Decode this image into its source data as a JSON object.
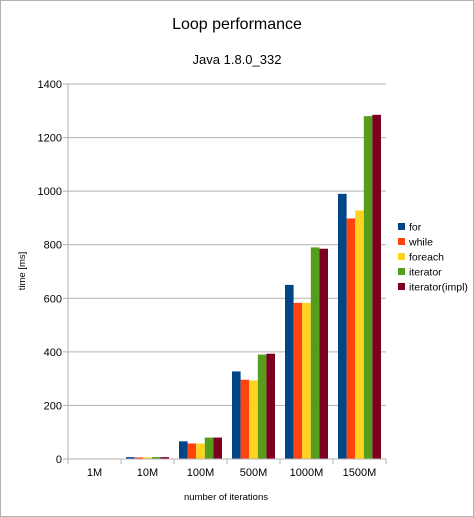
{
  "chart_data": {
    "type": "bar",
    "title": "Loop performance",
    "subtitle": "Java 1.8.0_332",
    "xlabel": "number of iterations",
    "ylabel": "time [ms]",
    "ylim": [
      0,
      1400
    ],
    "yticks": [
      0,
      200,
      400,
      600,
      800,
      1000,
      1200,
      1400
    ],
    "grid": true,
    "legend_position": "right",
    "categories": [
      "1M",
      "10M",
      "100M",
      "500M",
      "1000M",
      "1500M"
    ],
    "series": [
      {
        "name": "for",
        "color": "#004586",
        "values": [
          1,
          7,
          66,
          327,
          650,
          990
        ]
      },
      {
        "name": "while",
        "color": "#ff420e",
        "values": [
          1,
          6,
          58,
          296,
          583,
          898
        ]
      },
      {
        "name": "foreach",
        "color": "#ffd320",
        "values": [
          1,
          6,
          58,
          293,
          583,
          928
        ]
      },
      {
        "name": "iterator",
        "color": "#579d1c",
        "values": [
          1,
          7,
          80,
          390,
          790,
          1280
        ]
      },
      {
        "name": "iterator(impl)",
        "color": "#7e0021",
        "values": [
          1,
          7,
          80,
          393,
          785,
          1285
        ]
      }
    ]
  }
}
